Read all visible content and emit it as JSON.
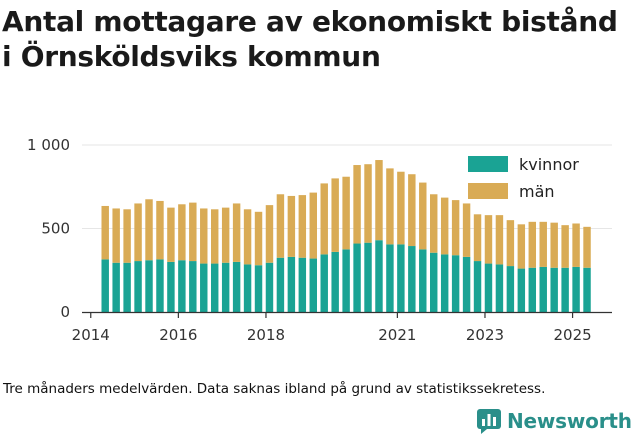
{
  "title_line1": "Antal mottagare av ekonomiskt bistånd",
  "title_line2": "i Örnsköldsviks kommun",
  "footnote": "Tre månaders medelvärden. Data saknas ibland på grund av statistikssekretess.",
  "brand": {
    "name": "Newsworthy",
    "icon": "newsworthy-logo-icon"
  },
  "colors": {
    "kvinnor": "#1aa394",
    "man": "#d9ab55",
    "axis": "#333333",
    "grid": "#e6e6e6"
  },
  "chart_data": {
    "type": "bar",
    "stacked": true,
    "title": "Antal mottagare av ekonomiskt bistånd i Örnsköldsviks kommun",
    "xlabel": "",
    "ylabel": "",
    "ylim": [
      0,
      1000
    ],
    "yticks": [
      0,
      500,
      1000
    ],
    "ytick_labels": [
      "0",
      "500",
      "1 000"
    ],
    "x_start": 2014.33,
    "x_step": 0.25,
    "xlim": [
      2013.8,
      2025.9
    ],
    "xticks": [
      2014,
      2016,
      2018,
      2021,
      2023,
      2025
    ],
    "xtick_labels": [
      "2014",
      "2016",
      "2018",
      "2021",
      "2023",
      "2025"
    ],
    "legend": [
      "kvinnor",
      "män"
    ],
    "series": [
      {
        "name": "kvinnor",
        "values": [
          315,
          295,
          295,
          305,
          310,
          315,
          300,
          310,
          305,
          290,
          290,
          295,
          300,
          285,
          280,
          295,
          325,
          330,
          325,
          320,
          345,
          360,
          375,
          410,
          415,
          430,
          405,
          405,
          395,
          375,
          355,
          345,
          340,
          330,
          305,
          290,
          285,
          275,
          260,
          265,
          270,
          265,
          265,
          270,
          265
        ]
      },
      {
        "name": "män",
        "values": [
          320,
          325,
          320,
          345,
          365,
          350,
          325,
          335,
          350,
          330,
          325,
          330,
          350,
          330,
          320,
          345,
          380,
          365,
          375,
          395,
          425,
          440,
          435,
          470,
          470,
          480,
          455,
          435,
          430,
          400,
          350,
          340,
          330,
          320,
          280,
          290,
          295,
          275,
          265,
          275,
          270,
          270,
          255,
          260,
          245
        ]
      }
    ]
  }
}
